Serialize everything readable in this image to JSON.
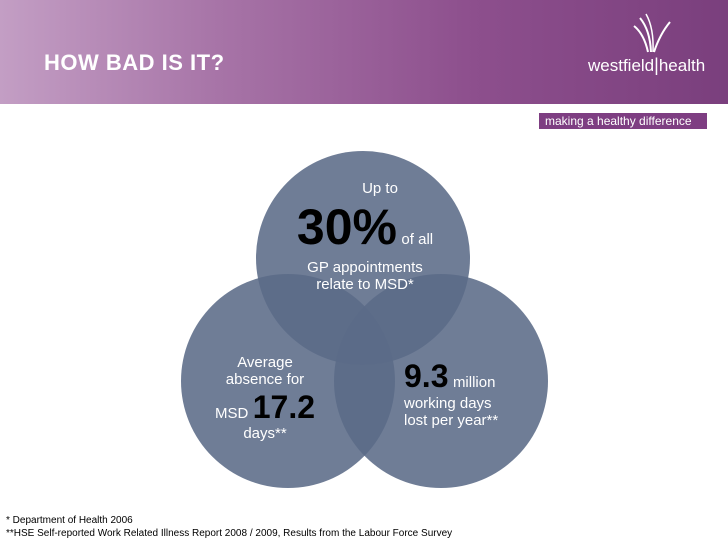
{
  "header": {
    "title": "HOW BAD IS IT?",
    "logo": {
      "left": "westfield",
      "right": "health"
    },
    "tagline": "making a healthy difference"
  },
  "colors": {
    "header_start": "#c39ec4",
    "header_end": "#7a3f7d",
    "circle_fill": "#5b6b87",
    "tagline_bg": "#7e3e82"
  },
  "stats": {
    "top": {
      "line1": "Up to",
      "big": "30%",
      "after": "of all",
      "line3": "GP appointments",
      "line4": "relate to MSD*"
    },
    "left": {
      "line1": "Average",
      "line2": "absence for",
      "prefix": "MSD",
      "big": "17.2",
      "line4": "days**"
    },
    "right": {
      "big": "9.3",
      "after": "million",
      "line2": "working days",
      "line3": "lost per year**"
    }
  },
  "footnotes": {
    "note1": "*  Department of Health 2006",
    "note2": "**HSE Self-reported Work Related Illness Report 2008 / 2009, Results from the Labour Force Survey"
  }
}
